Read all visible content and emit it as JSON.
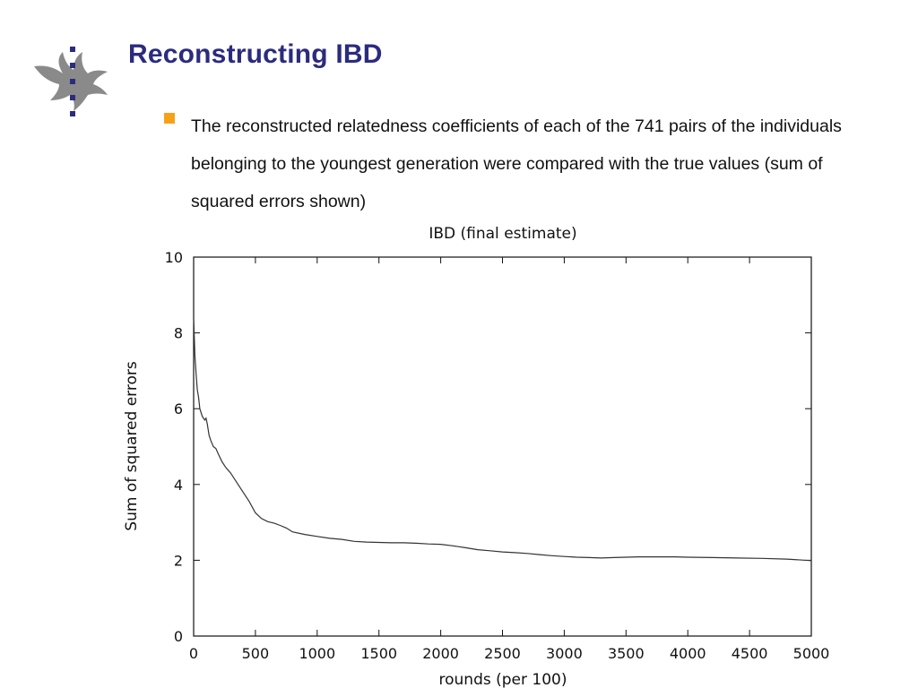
{
  "slide": {
    "title": "Reconstructing IBD",
    "bullet": "The reconstructed relatedness coefficients of each of the 741 pairs of the individuals belonging to the youngest generation were compared with the true values (sum of squared errors shown)"
  },
  "colors": {
    "title": "#2b2b7f",
    "bullet_marker": "#f7a11a",
    "logo": "#8a8a8a",
    "logo_dots": "#2b2b7f",
    "plot_line": "#333333"
  },
  "logo": {
    "icon": "flame-emblem-icon"
  },
  "chart_data": {
    "type": "line",
    "title": "IBD (final estimate)",
    "xlabel": "rounds (per 100)",
    "ylabel": "Sum of squared errors",
    "xlim": [
      0,
      5000
    ],
    "ylim": [
      0,
      10
    ],
    "xticks": [
      "0",
      "500",
      "1000",
      "1500",
      "2000",
      "2500",
      "3000",
      "3500",
      "4000",
      "4500",
      "5000"
    ],
    "yticks": [
      "0",
      "2",
      "4",
      "6",
      "8",
      "10"
    ],
    "grid": false,
    "series": [
      {
        "values": [
          [
            0,
            8.4
          ],
          [
            5,
            7.9
          ],
          [
            10,
            7.4
          ],
          [
            20,
            6.9
          ],
          [
            30,
            6.5
          ],
          [
            40,
            6.3
          ],
          [
            50,
            6.0
          ],
          [
            70,
            5.8
          ],
          [
            90,
            5.7
          ],
          [
            100,
            5.75
          ],
          [
            110,
            5.6
          ],
          [
            125,
            5.3
          ],
          [
            140,
            5.15
          ],
          [
            160,
            5.0
          ],
          [
            180,
            4.95
          ],
          [
            200,
            4.8
          ],
          [
            230,
            4.6
          ],
          [
            260,
            4.45
          ],
          [
            300,
            4.3
          ],
          [
            350,
            4.05
          ],
          [
            400,
            3.8
          ],
          [
            450,
            3.55
          ],
          [
            500,
            3.25
          ],
          [
            550,
            3.1
          ],
          [
            600,
            3.02
          ],
          [
            650,
            2.98
          ],
          [
            700,
            2.92
          ],
          [
            750,
            2.85
          ],
          [
            800,
            2.75
          ],
          [
            900,
            2.68
          ],
          [
            1000,
            2.63
          ],
          [
            1100,
            2.58
          ],
          [
            1200,
            2.55
          ],
          [
            1300,
            2.5
          ],
          [
            1400,
            2.48
          ],
          [
            1500,
            2.47
          ],
          [
            1600,
            2.46
          ],
          [
            1700,
            2.46
          ],
          [
            1800,
            2.45
          ],
          [
            1900,
            2.43
          ],
          [
            2000,
            2.42
          ],
          [
            2100,
            2.38
          ],
          [
            2200,
            2.33
          ],
          [
            2300,
            2.28
          ],
          [
            2400,
            2.25
          ],
          [
            2500,
            2.22
          ],
          [
            2600,
            2.2
          ],
          [
            2700,
            2.18
          ],
          [
            2800,
            2.15
          ],
          [
            2900,
            2.12
          ],
          [
            3000,
            2.1
          ],
          [
            3100,
            2.08
          ],
          [
            3200,
            2.07
          ],
          [
            3300,
            2.06
          ],
          [
            3400,
            2.07
          ],
          [
            3500,
            2.08
          ],
          [
            3600,
            2.09
          ],
          [
            3700,
            2.09
          ],
          [
            3800,
            2.09
          ],
          [
            3900,
            2.09
          ],
          [
            4000,
            2.08
          ],
          [
            4200,
            2.07
          ],
          [
            4400,
            2.06
          ],
          [
            4600,
            2.05
          ],
          [
            4800,
            2.03
          ],
          [
            5000,
            1.99
          ]
        ]
      }
    ]
  }
}
